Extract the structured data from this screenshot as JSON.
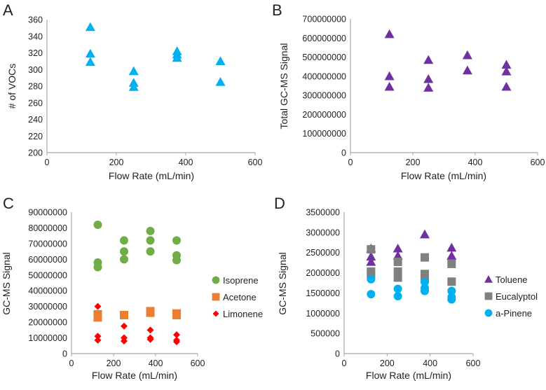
{
  "chart_data": [
    {
      "panel": "A",
      "type": "scatter",
      "xlabel": "Flow Rate (mL/min)",
      "ylabel": "# of VOCs",
      "xlim": [
        0,
        600
      ],
      "ylim": [
        200,
        360
      ],
      "xticks": [
        0,
        200,
        400,
        600
      ],
      "yticks": [
        200,
        220,
        240,
        260,
        280,
        300,
        320,
        340,
        360
      ],
      "legend": null,
      "series": [
        {
          "name": "# of VOCs",
          "marker": "triangle",
          "color": "#00b0f0",
          "points": [
            [
              125,
              351
            ],
            [
              125,
              319
            ],
            [
              125,
              309
            ],
            [
              250,
              298
            ],
            [
              250,
              284
            ],
            [
              250,
              279
            ],
            [
              375,
              322
            ],
            [
              375,
              318
            ],
            [
              375,
              314
            ],
            [
              500,
              310
            ],
            [
              500,
              285
            ]
          ]
        }
      ]
    },
    {
      "panel": "B",
      "type": "scatter",
      "xlabel": "Flow Rate (mL/min)",
      "ylabel": "Total GC-MS Signal",
      "xlim": [
        0,
        600
      ],
      "ylim": [
        0,
        700000000
      ],
      "xticks": [
        0,
        200,
        400,
        600
      ],
      "yticks": [
        0,
        100000000,
        200000000,
        300000000,
        400000000,
        500000000,
        600000000,
        700000000
      ],
      "legend": null,
      "series": [
        {
          "name": "Total GC-MS Signal",
          "marker": "triangle",
          "color": "#7030a0",
          "points": [
            [
              125,
              620000000
            ],
            [
              125,
              400000000
            ],
            [
              125,
              345000000
            ],
            [
              250,
              485000000
            ],
            [
              250,
              385000000
            ],
            [
              250,
              340000000
            ],
            [
              375,
              510000000
            ],
            [
              375,
              430000000
            ],
            [
              500,
              460000000
            ],
            [
              500,
              425000000
            ],
            [
              500,
              345000000
            ]
          ]
        }
      ]
    },
    {
      "panel": "C",
      "type": "scatter",
      "xlabel": "Flow Rate (mL/min)",
      "ylabel": "GC-MS Signal",
      "xlim": [
        0,
        600
      ],
      "ylim": [
        0,
        90000000
      ],
      "xticks": [
        0,
        200,
        400,
        600
      ],
      "yticks": [
        0,
        10000000,
        20000000,
        30000000,
        40000000,
        50000000,
        60000000,
        70000000,
        80000000,
        90000000
      ],
      "legend": "right",
      "series": [
        {
          "name": "Isoprene",
          "marker": "circle",
          "color": "#70ad47",
          "points": [
            [
              125,
              82000000
            ],
            [
              125,
              58000000
            ],
            [
              125,
              55000000
            ],
            [
              250,
              72000000
            ],
            [
              250,
              65000000
            ],
            [
              250,
              60000000
            ],
            [
              375,
              78000000
            ],
            [
              375,
              72000000
            ],
            [
              375,
              65000000
            ],
            [
              500,
              72000000
            ],
            [
              500,
              62500000
            ],
            [
              500,
              59500000
            ]
          ]
        },
        {
          "name": "Acetone",
          "marker": "square",
          "color": "#ed7d31",
          "points": [
            [
              125,
              25000000
            ],
            [
              125,
              23000000
            ],
            [
              250,
              24500000
            ],
            [
              375,
              27000000
            ],
            [
              375,
              26000000
            ],
            [
              500,
              25500000
            ],
            [
              500,
              24500000
            ]
          ]
        },
        {
          "name": "Limonene",
          "marker": "diamond",
          "color": "#ff0000",
          "points": [
            [
              125,
              30000000
            ],
            [
              125,
              11000000
            ],
            [
              125,
              8500000
            ],
            [
              250,
              17500000
            ],
            [
              250,
              10000000
            ],
            [
              250,
              8000000
            ],
            [
              375,
              15000000
            ],
            [
              375,
              10000000
            ],
            [
              375,
              9000000
            ],
            [
              500,
              12000000
            ],
            [
              500,
              8500000
            ],
            [
              500,
              7500000
            ]
          ]
        }
      ]
    },
    {
      "panel": "D",
      "type": "scatter",
      "xlabel": "Flow Rate (mL/min)",
      "ylabel": "GC-MS Signal",
      "xlim": [
        0,
        600
      ],
      "ylim": [
        0,
        3500000
      ],
      "xticks": [
        0,
        200,
        400,
        600
      ],
      "yticks": [
        0,
        500000,
        1000000,
        1500000,
        2000000,
        2500000,
        3000000,
        3500000
      ],
      "legend": "right",
      "series": [
        {
          "name": "Toluene",
          "marker": "triangle",
          "color": "#7030a0",
          "points": [
            [
              125,
              2600000
            ],
            [
              125,
              2400000
            ],
            [
              125,
              2270000
            ],
            [
              250,
              2600000
            ],
            [
              250,
              2420000
            ],
            [
              375,
              2950000
            ],
            [
              500,
              2620000
            ],
            [
              500,
              2420000
            ]
          ]
        },
        {
          "name": "Eucalyptol",
          "marker": "square",
          "color": "#808080",
          "points": [
            [
              125,
              2580000
            ],
            [
              125,
              2030000
            ],
            [
              125,
              1950000
            ],
            [
              250,
              2270000
            ],
            [
              250,
              2030000
            ],
            [
              250,
              1880000
            ],
            [
              375,
              2380000
            ],
            [
              375,
              1970000
            ],
            [
              375,
              1900000
            ],
            [
              500,
              2220000
            ],
            [
              500,
              1780000
            ]
          ]
        },
        {
          "name": "a-Pinene",
          "marker": "circle",
          "color": "#00b0f0",
          "points": [
            [
              125,
              1840000
            ],
            [
              125,
              1470000
            ],
            [
              250,
              1600000
            ],
            [
              250,
              1420000
            ],
            [
              375,
              1770000
            ],
            [
              375,
              1620000
            ],
            [
              375,
              1550000
            ],
            [
              500,
              1550000
            ],
            [
              500,
              1400000
            ],
            [
              500,
              1340000
            ]
          ]
        }
      ]
    }
  ]
}
